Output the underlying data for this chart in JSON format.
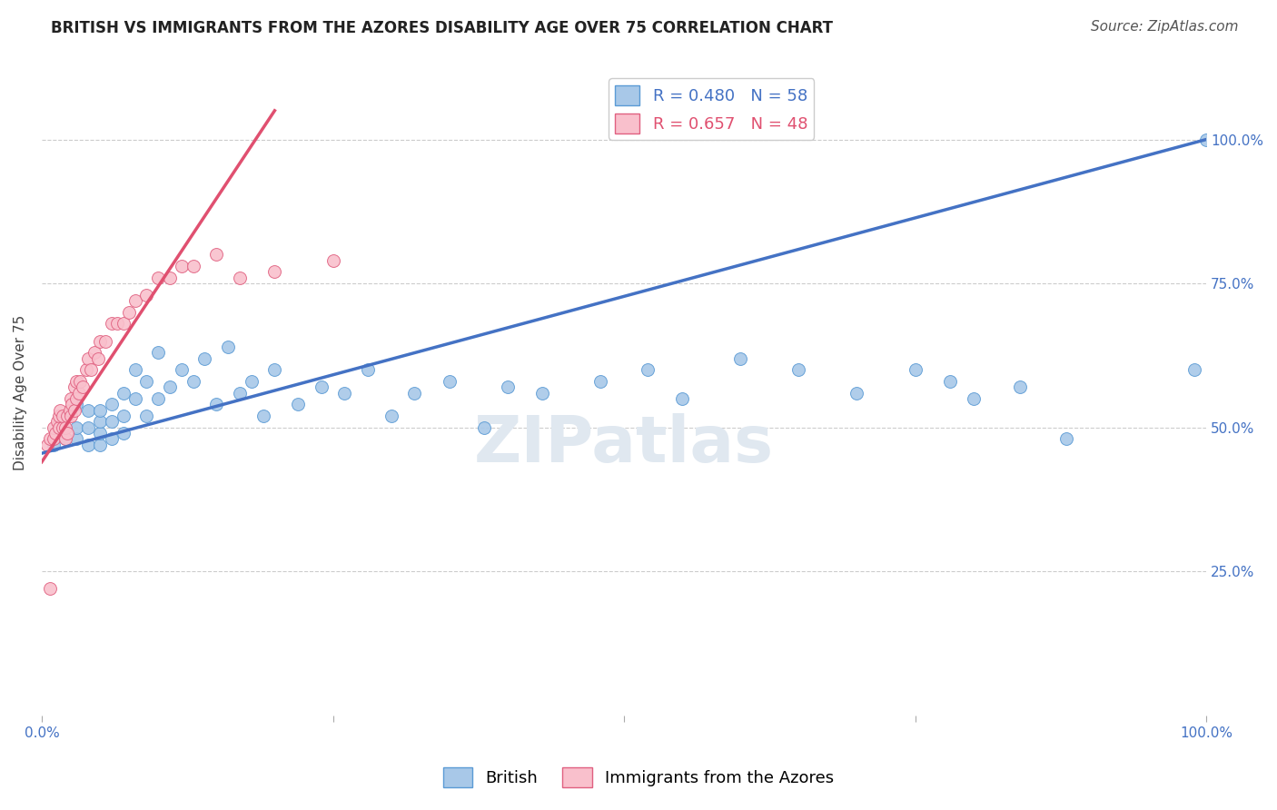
{
  "title": "BRITISH VS IMMIGRANTS FROM THE AZORES DISABILITY AGE OVER 75 CORRELATION CHART",
  "source": "Source: ZipAtlas.com",
  "ylabel": "Disability Age Over 75",
  "watermark": "ZIPatlas",
  "blue_R": 0.48,
  "blue_N": 58,
  "pink_R": 0.657,
  "pink_N": 48,
  "xlim": [
    0,
    1
  ],
  "ylim": [
    0,
    1.12
  ],
  "xtick_vals": [
    0.0,
    0.25,
    0.5,
    0.75,
    1.0
  ],
  "xticklabels": [
    "0.0%",
    "",
    "",
    "",
    "100.0%"
  ],
  "ytick_right_vals": [
    0.25,
    0.5,
    0.75,
    1.0
  ],
  "ytick_right_labels": [
    "25.0%",
    "50.0%",
    "75.0%",
    "100.0%"
  ],
  "blue_color": "#a8c8e8",
  "pink_color": "#f9c0cc",
  "blue_edge_color": "#5b9bd5",
  "pink_edge_color": "#e06080",
  "blue_line_color": "#4472c4",
  "pink_line_color": "#e05070",
  "legend_blue_label": "British",
  "legend_pink_label": "Immigrants from the Azores",
  "blue_scatter_x": [
    0.01,
    0.02,
    0.02,
    0.03,
    0.03,
    0.03,
    0.04,
    0.04,
    0.04,
    0.05,
    0.05,
    0.05,
    0.05,
    0.06,
    0.06,
    0.06,
    0.07,
    0.07,
    0.07,
    0.08,
    0.08,
    0.09,
    0.09,
    0.1,
    0.1,
    0.11,
    0.12,
    0.13,
    0.14,
    0.15,
    0.16,
    0.17,
    0.18,
    0.19,
    0.2,
    0.22,
    0.24,
    0.26,
    0.28,
    0.3,
    0.32,
    0.35,
    0.38,
    0.4,
    0.43,
    0.48,
    0.52,
    0.55,
    0.6,
    0.65,
    0.7,
    0.75,
    0.78,
    0.8,
    0.84,
    0.88,
    0.99,
    1.0
  ],
  "blue_scatter_y": [
    0.47,
    0.48,
    0.52,
    0.48,
    0.5,
    0.54,
    0.47,
    0.5,
    0.53,
    0.47,
    0.49,
    0.51,
    0.53,
    0.48,
    0.51,
    0.54,
    0.49,
    0.52,
    0.56,
    0.55,
    0.6,
    0.52,
    0.58,
    0.55,
    0.63,
    0.57,
    0.6,
    0.58,
    0.62,
    0.54,
    0.64,
    0.56,
    0.58,
    0.52,
    0.6,
    0.54,
    0.57,
    0.56,
    0.6,
    0.52,
    0.56,
    0.58,
    0.5,
    0.57,
    0.56,
    0.58,
    0.6,
    0.55,
    0.62,
    0.6,
    0.56,
    0.6,
    0.58,
    0.55,
    0.57,
    0.48,
    0.6,
    1.0
  ],
  "pink_scatter_x": [
    0.005,
    0.007,
    0.01,
    0.01,
    0.012,
    0.013,
    0.015,
    0.015,
    0.016,
    0.018,
    0.018,
    0.02,
    0.02,
    0.022,
    0.022,
    0.024,
    0.025,
    0.025,
    0.026,
    0.028,
    0.028,
    0.03,
    0.03,
    0.032,
    0.033,
    0.035,
    0.038,
    0.04,
    0.042,
    0.045,
    0.048,
    0.05,
    0.055,
    0.06,
    0.065,
    0.07,
    0.075,
    0.08,
    0.09,
    0.1,
    0.11,
    0.12,
    0.13,
    0.15,
    0.17,
    0.2,
    0.25,
    0.007
  ],
  "pink_scatter_y": [
    0.47,
    0.48,
    0.48,
    0.5,
    0.49,
    0.51,
    0.5,
    0.52,
    0.53,
    0.5,
    0.52,
    0.48,
    0.5,
    0.49,
    0.52,
    0.53,
    0.52,
    0.55,
    0.54,
    0.57,
    0.53,
    0.55,
    0.58,
    0.56,
    0.58,
    0.57,
    0.6,
    0.62,
    0.6,
    0.63,
    0.62,
    0.65,
    0.65,
    0.68,
    0.68,
    0.68,
    0.7,
    0.72,
    0.73,
    0.76,
    0.76,
    0.78,
    0.78,
    0.8,
    0.76,
    0.77,
    0.79,
    0.22
  ],
  "blue_trendline_x": [
    0.0,
    1.0
  ],
  "blue_trendline_y": [
    0.455,
    1.0
  ],
  "pink_trendline_x": [
    0.0,
    0.2
  ],
  "pink_trendline_y": [
    0.44,
    1.05
  ],
  "grid_color": "#cccccc",
  "bg_color": "#ffffff",
  "title_fontsize": 12,
  "axis_label_fontsize": 11,
  "tick_fontsize": 11,
  "legend_fontsize": 13,
  "source_fontsize": 11,
  "watermark_color": "#e0e8f0"
}
